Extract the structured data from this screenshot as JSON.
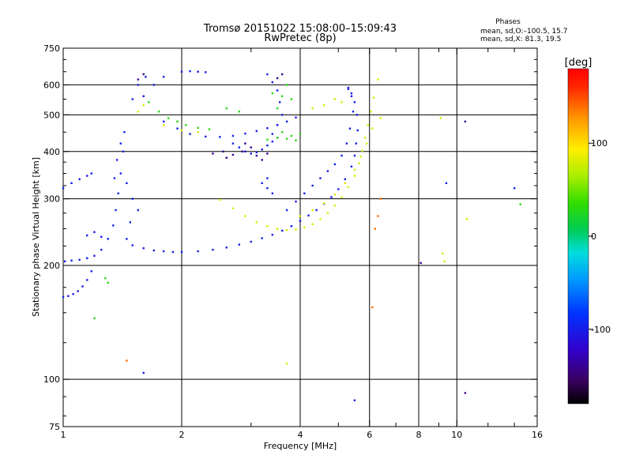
{
  "chart_data": {
    "type": "scatter",
    "title": "Tromsø 20151022 15:08:00–15:09:43",
    "subtitle": "RwPretec (8p)",
    "phase_stats": {
      "heading": "Phases",
      "line_o": "mean, sd,O:–100.5, 15.7",
      "line_x": "mean, sd,X:  81.3, 19.5"
    },
    "xlabel": "Frequency [MHz]",
    "ylabel": "Stationary phase Virtual Height [km]",
    "x_scale": "log",
    "y_scale": "log",
    "xlim": [
      1,
      16
    ],
    "ylim": [
      75,
      750
    ],
    "x_ticks": [
      1,
      2,
      4,
      6,
      8,
      10,
      16
    ],
    "x_tick_labels": [
      "1",
      "2",
      "4",
      "6",
      "8",
      "10",
      "16"
    ],
    "x_gridlines": [
      2,
      4,
      6,
      8,
      10
    ],
    "y_ticks": [
      75,
      100,
      200,
      300,
      400,
      500,
      600,
      750
    ],
    "y_tick_labels": [
      "75",
      "100",
      "200",
      "300",
      "400",
      "500",
      "600",
      "750"
    ],
    "y_gridlines": [
      100,
      200,
      300,
      400,
      500,
      600
    ],
    "grid": true,
    "colorbar": {
      "label": "[deg]",
      "range": [
        -180,
        180
      ],
      "ticks": [
        100,
        0,
        -100
      ],
      "tick_labels": [
        "100",
        "0",
        "-100"
      ]
    },
    "series": [
      {
        "phase": -100,
        "points": [
          [
            1.0,
            165
          ],
          [
            1.03,
            166
          ],
          [
            1.06,
            168
          ],
          [
            1.09,
            171
          ],
          [
            1.12,
            176
          ],
          [
            1.15,
            183
          ],
          [
            1.18,
            193
          ],
          [
            1.01,
            205
          ],
          [
            1.05,
            206
          ],
          [
            1.1,
            207
          ],
          [
            1.15,
            209
          ],
          [
            1.2,
            212
          ],
          [
            1.25,
            220
          ],
          [
            1.3,
            235
          ],
          [
            1.34,
            255
          ],
          [
            1.36,
            280
          ],
          [
            1.38,
            310
          ],
          [
            1.4,
            350
          ],
          [
            1.42,
            400
          ],
          [
            1.43,
            450
          ],
          [
            1.4,
            420
          ],
          [
            1.37,
            380
          ],
          [
            1.35,
            340
          ],
          [
            1.0,
            320
          ],
          [
            1.05,
            330
          ],
          [
            1.1,
            338
          ],
          [
            1.15,
            345
          ],
          [
            1.18,
            350
          ],
          [
            1.45,
            235
          ],
          [
            1.5,
            226
          ],
          [
            1.6,
            222
          ],
          [
            1.7,
            219
          ],
          [
            1.8,
            218
          ],
          [
            1.9,
            217
          ],
          [
            2.0,
            217
          ],
          [
            2.2,
            218
          ],
          [
            2.4,
            220
          ],
          [
            2.6,
            223
          ],
          [
            2.8,
            227
          ],
          [
            3.0,
            231
          ],
          [
            3.2,
            236
          ],
          [
            3.4,
            241
          ],
          [
            3.6,
            247
          ],
          [
            3.8,
            254
          ],
          [
            4.0,
            262
          ],
          [
            4.2,
            271
          ],
          [
            4.4,
            280
          ],
          [
            4.6,
            291
          ],
          [
            4.8,
            303
          ],
          [
            5.0,
            318
          ],
          [
            5.2,
            338
          ],
          [
            5.4,
            365
          ],
          [
            5.5,
            390
          ],
          [
            5.55,
            420
          ],
          [
            5.6,
            455
          ],
          [
            5.58,
            500
          ],
          [
            5.5,
            540
          ],
          [
            5.4,
            570
          ],
          [
            5.3,
            585
          ],
          [
            3.7,
            280
          ],
          [
            3.9,
            295
          ],
          [
            4.1,
            310
          ],
          [
            4.3,
            325
          ],
          [
            4.5,
            340
          ],
          [
            4.7,
            355
          ],
          [
            4.9,
            370
          ],
          [
            5.1,
            390
          ],
          [
            5.25,
            420
          ],
          [
            5.35,
            460
          ],
          [
            5.45,
            510
          ],
          [
            5.4,
            560
          ],
          [
            5.3,
            590
          ],
          [
            1.8,
            480
          ],
          [
            1.95,
            460
          ],
          [
            2.1,
            445
          ],
          [
            2.3,
            438
          ],
          [
            2.5,
            437
          ],
          [
            2.7,
            440
          ],
          [
            2.9,
            446
          ],
          [
            3.1,
            453
          ],
          [
            3.3,
            461
          ],
          [
            3.5,
            470
          ],
          [
            3.7,
            480
          ],
          [
            3.9,
            492
          ],
          [
            2.7,
            420
          ],
          [
            2.8,
            410
          ],
          [
            2.9,
            400
          ],
          [
            3.0,
            395
          ],
          [
            3.1,
            398
          ],
          [
            3.2,
            405
          ],
          [
            3.3,
            415
          ],
          [
            3.4,
            425
          ],
          [
            3.5,
            435
          ],
          [
            1.6,
            560
          ],
          [
            1.7,
            600
          ],
          [
            1.8,
            630
          ],
          [
            2.0,
            650
          ],
          [
            2.1,
            652
          ],
          [
            2.2,
            650
          ],
          [
            2.3,
            648
          ],
          [
            3.3,
            640
          ],
          [
            3.4,
            610
          ],
          [
            3.5,
            580
          ],
          [
            3.55,
            540
          ],
          [
            3.6,
            500
          ],
          [
            3.5,
            470
          ],
          [
            3.4,
            445
          ],
          [
            3.2,
            330
          ],
          [
            3.3,
            320
          ],
          [
            3.4,
            310
          ],
          [
            3.3,
            340
          ],
          [
            1.15,
            240
          ],
          [
            1.2,
            245
          ],
          [
            1.25,
            238
          ],
          [
            1.45,
            330
          ],
          [
            1.5,
            300
          ],
          [
            1.55,
            280
          ],
          [
            1.48,
            260
          ],
          [
            1.5,
            550
          ],
          [
            1.55,
            600
          ],
          [
            1.62,
            630
          ],
          [
            9.4,
            330
          ],
          [
            14.0,
            320
          ],
          [
            5.5,
            88
          ],
          [
            1.6,
            104
          ]
        ]
      },
      {
        "phase": -140,
        "points": [
          [
            2.4,
            395
          ],
          [
            2.55,
            400
          ],
          [
            2.7,
            392
          ],
          [
            2.85,
            400
          ],
          [
            3.0,
            410
          ],
          [
            3.1,
            390
          ],
          [
            3.2,
            380
          ],
          [
            2.9,
            420
          ],
          [
            2.6,
            385
          ],
          [
            3.3,
            395
          ],
          [
            1.55,
            620
          ],
          [
            1.6,
            640
          ],
          [
            3.6,
            640
          ],
          [
            3.5,
            625
          ],
          [
            8.1,
            203
          ],
          [
            10.5,
            92
          ],
          [
            10.5,
            480
          ]
        ]
      },
      {
        "phase": 30,
        "points": [
          [
            1.65,
            540
          ],
          [
            1.75,
            510
          ],
          [
            1.85,
            490
          ],
          [
            1.95,
            480
          ],
          [
            2.05,
            470
          ],
          [
            2.2,
            462
          ],
          [
            2.35,
            458
          ],
          [
            3.3,
            430
          ],
          [
            3.5,
            435
          ],
          [
            3.7,
            432
          ],
          [
            3.9,
            428
          ],
          [
            3.6,
            450
          ],
          [
            3.8,
            440
          ],
          [
            4.0,
            445
          ],
          [
            3.4,
            570
          ],
          [
            3.6,
            560
          ],
          [
            3.8,
            550
          ],
          [
            3.5,
            520
          ],
          [
            3.7,
            600
          ],
          [
            2.6,
            520
          ],
          [
            2.8,
            510
          ],
          [
            1.3,
            180
          ],
          [
            1.28,
            185
          ],
          [
            1.2,
            145
          ],
          [
            14.5,
            290
          ]
        ]
      },
      {
        "phase": 80,
        "points": [
          [
            2.5,
            298
          ],
          [
            2.7,
            283
          ],
          [
            2.9,
            270
          ],
          [
            3.1,
            260
          ],
          [
            3.3,
            254
          ],
          [
            3.5,
            250
          ],
          [
            3.7,
            248
          ],
          [
            3.9,
            249
          ],
          [
            4.1,
            252
          ],
          [
            4.3,
            257
          ],
          [
            4.5,
            265
          ],
          [
            4.7,
            275
          ],
          [
            4.9,
            288
          ],
          [
            5.1,
            303
          ],
          [
            5.3,
            322
          ],
          [
            5.5,
            345
          ],
          [
            5.65,
            372
          ],
          [
            5.75,
            402
          ],
          [
            5.85,
            435
          ],
          [
            5.95,
            470
          ],
          [
            6.05,
            510
          ],
          [
            6.15,
            555
          ],
          [
            4.0,
            270
          ],
          [
            4.3,
            280
          ],
          [
            4.6,
            292
          ],
          [
            4.9,
            308
          ],
          [
            5.2,
            330
          ],
          [
            5.5,
            358
          ],
          [
            5.7,
            388
          ],
          [
            5.9,
            420
          ],
          [
            6.1,
            460
          ],
          [
            1.8,
            470
          ],
          [
            2.0,
            455
          ],
          [
            2.2,
            450
          ],
          [
            4.3,
            520
          ],
          [
            4.6,
            530
          ],
          [
            4.9,
            550
          ],
          [
            5.1,
            540
          ],
          [
            1.55,
            510
          ],
          [
            1.6,
            530
          ],
          [
            3.7,
            110
          ],
          [
            9.2,
            215
          ],
          [
            9.3,
            205
          ],
          [
            10.6,
            265
          ],
          [
            6.3,
            620
          ],
          [
            6.4,
            490
          ],
          [
            9.1,
            490
          ]
        ]
      },
      {
        "phase": 140,
        "points": [
          [
            6.1,
            155
          ],
          [
            6.4,
            300
          ],
          [
            6.3,
            270
          ],
          [
            1.45,
            112
          ],
          [
            6.2,
            250
          ]
        ]
      }
    ]
  }
}
